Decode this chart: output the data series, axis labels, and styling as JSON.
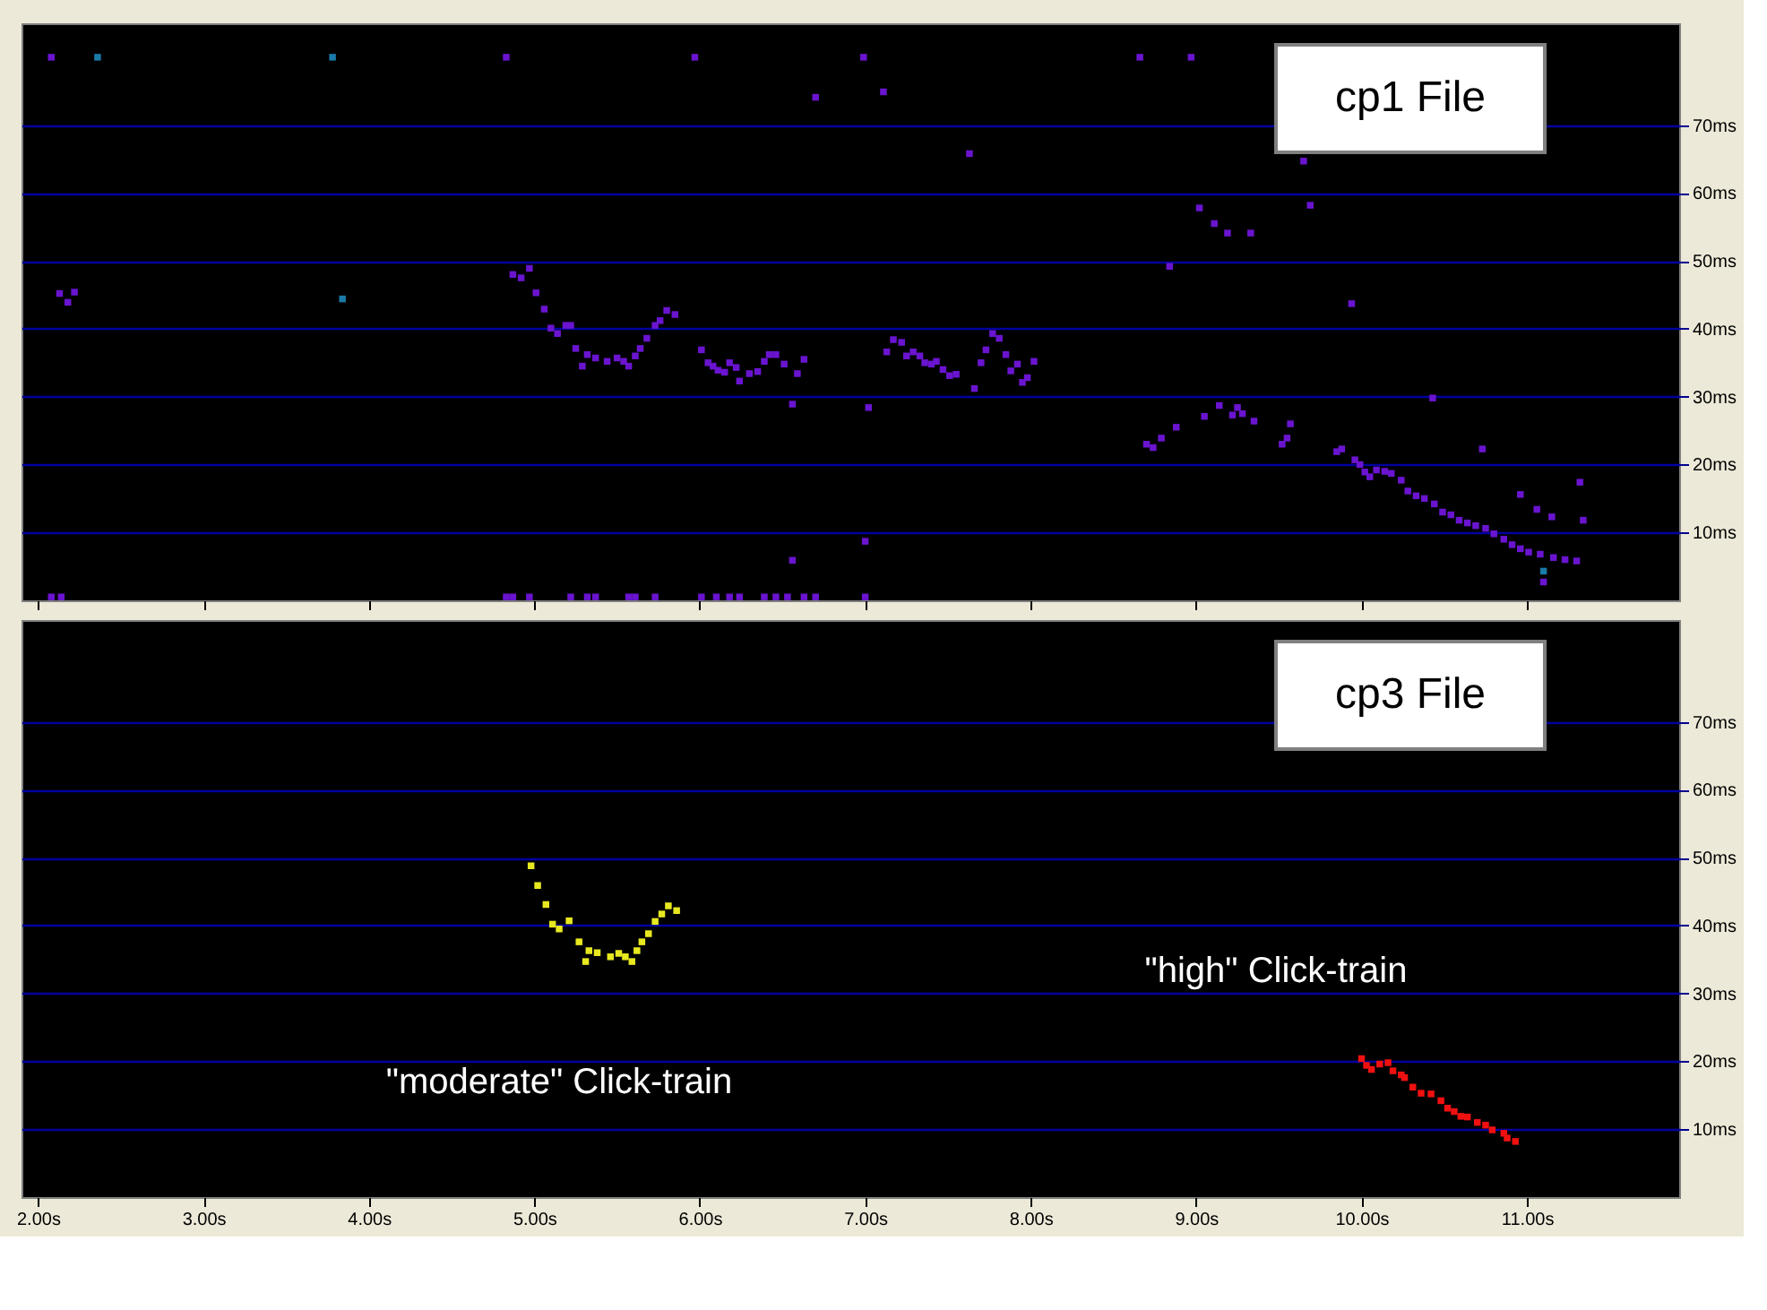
{
  "chart_data": [
    {
      "type": "scatter",
      "title": "cp1 File",
      "xlim": [
        1.9,
        11.92
      ],
      "ylim": [
        0,
        85
      ],
      "xticks": [
        2,
        3,
        4,
        5,
        6,
        7,
        8,
        9,
        10,
        11
      ],
      "yticks": [
        {
          "value": 10,
          "label": "10ms"
        },
        {
          "value": 20,
          "label": "20ms"
        },
        {
          "value": 30,
          "label": "30ms"
        },
        {
          "value": 40,
          "label": "40ms"
        },
        {
          "value": 50,
          "label": "50ms"
        },
        {
          "value": 60,
          "label": "60ms"
        },
        {
          "value": 70,
          "label": "70ms"
        }
      ],
      "tick_labels": "y",
      "grid": "y",
      "marker": "square",
      "series": [
        {
          "color": "#6a14d0",
          "x": [
            2.08,
            4.83,
            5.97,
            6.99,
            8.66,
            8.97,
            6.7,
            2.13,
            2.18,
            2.22,
            4.87,
            4.92,
            4.97,
            5.01,
            5.06,
            5.1,
            5.14,
            5.19,
            5.22,
            5.25,
            5.29,
            5.32,
            5.37,
            5.44,
            5.5,
            5.54,
            5.57,
            5.61,
            5.64,
            5.68,
            5.73,
            5.76,
            5.8,
            5.85,
            6.01,
            6.05,
            6.08,
            6.11,
            6.15,
            6.18,
            6.22,
            6.24,
            6.3,
            6.35,
            6.39,
            6.42,
            6.46,
            6.51,
            6.56,
            6.56,
            6.59,
            6.63,
            7.0,
            7.02,
            7.11,
            7.63,
            9.02,
            9.11,
            9.19,
            9.33,
            9.65,
            9.69,
            8.84,
            9.94,
            10.43,
            10.73,
            10.96,
            11.32,
            11.34,
            11.15,
            11.06,
            7.13,
            7.17,
            7.22,
            7.25,
            7.29,
            7.33,
            7.36,
            7.4,
            7.43,
            7.47,
            7.51,
            7.55,
            7.66,
            7.7,
            7.73,
            7.77,
            7.81,
            7.85,
            7.88,
            7.92,
            7.95,
            7.98,
            8.02,
            8.7,
            8.74,
            8.79,
            8.88,
            9.05,
            9.14,
            9.22,
            9.25,
            9.28,
            9.35,
            9.52,
            9.55,
            9.57,
            9.85,
            9.88,
            9.96,
            9.99,
            10.02,
            10.05,
            10.09,
            10.14,
            10.18,
            10.24,
            10.28,
            10.33,
            10.38,
            10.44,
            10.49,
            10.54,
            10.59,
            10.64,
            10.69,
            10.75,
            10.8,
            10.86,
            10.91,
            10.96,
            11.01,
            11.08,
            11.16,
            11.23,
            11.3,
            11.1,
            2.08,
            2.14,
            4.83,
            4.87,
            4.97,
            5.22,
            5.32,
            5.37,
            5.57,
            5.61,
            5.73,
            6.01,
            6.1,
            6.18,
            6.24,
            6.39,
            6.46,
            6.53,
            6.63,
            6.7,
            7.0
          ],
          "values": [
            80,
            80,
            80,
            80,
            80,
            80,
            74.1,
            45.2,
            43.9,
            45.4,
            48.0,
            47.5,
            48.9,
            45.3,
            42.9,
            40.1,
            39.3,
            40.5,
            40.5,
            37.1,
            34.5,
            36.2,
            35.7,
            35.2,
            35.7,
            35.2,
            34.5,
            36.0,
            37.1,
            38.6,
            40.5,
            41.2,
            42.7,
            42.1,
            36.9,
            35.0,
            34.5,
            33.9,
            33.6,
            35.0,
            34.3,
            32.3,
            33.4,
            33.7,
            35.2,
            36.2,
            36.2,
            34.8,
            28.9,
            5.9,
            33.4,
            35.5,
            8.7,
            28.4,
            74.9,
            65.8,
            57.8,
            55.5,
            54.1,
            54.1,
            64.7,
            58.2,
            49.2,
            43.7,
            29.8,
            22.3,
            15.6,
            17.4,
            11.8,
            12.3,
            13.4,
            36.6,
            38.4,
            38.0,
            36.0,
            36.6,
            36.0,
            35.0,
            34.8,
            35.2,
            34.0,
            33.1,
            33.3,
            31.2,
            35.0,
            36.9,
            39.3,
            38.6,
            36.2,
            33.8,
            34.8,
            32.1,
            32.8,
            35.2,
            23.0,
            22.5,
            23.9,
            25.5,
            27.1,
            28.7,
            27.3,
            28.4,
            27.5,
            26.4,
            23.0,
            23.9,
            26.0,
            21.9,
            22.3,
            20.7,
            20.0,
            18.9,
            18.2,
            19.2,
            19.0,
            18.7,
            17.7,
            16.1,
            15.4,
            15.0,
            14.2,
            13.0,
            12.6,
            11.8,
            11.4,
            11.0,
            10.6,
            9.8,
            9.0,
            8.2,
            7.6,
            7.1,
            6.8,
            6.3,
            6.0,
            5.8,
            2.7,
            0.5,
            0.5,
            0.5,
            0.5,
            0.5,
            0.5,
            0.5,
            0.5,
            0.5,
            0.5,
            0.5,
            0.5,
            0.5,
            0.5,
            0.5,
            0.5,
            0.5,
            0.5,
            0.5,
            0.5,
            0.5
          ]
        },
        {
          "color": "#1a7aa8",
          "x": [
            2.36,
            3.78,
            3.84,
            11.1
          ],
          "values": [
            80,
            80,
            44.4,
            4.3
          ]
        }
      ]
    },
    {
      "type": "scatter",
      "title": "cp3 File",
      "xlim": [
        1.9,
        11.92
      ],
      "ylim": [
        0,
        85
      ],
      "xticks": [
        {
          "value": 2,
          "label": "2.00s"
        },
        {
          "value": 3,
          "label": "3.00s"
        },
        {
          "value": 4,
          "label": "4.00s"
        },
        {
          "value": 5,
          "label": "5.00s"
        },
        {
          "value": 6,
          "label": "6.00s"
        },
        {
          "value": 7,
          "label": "7.00s"
        },
        {
          "value": 8,
          "label": "8.00s"
        },
        {
          "value": 9,
          "label": "9.00s"
        },
        {
          "value": 10,
          "label": "10.00s"
        },
        {
          "value": 11,
          "label": "11.00s"
        }
      ],
      "yticks": [
        {
          "value": 10,
          "label": "10ms"
        },
        {
          "value": 20,
          "label": "20ms"
        },
        {
          "value": 30,
          "label": "30ms"
        },
        {
          "value": 40,
          "label": "40ms"
        },
        {
          "value": 50,
          "label": "50ms"
        },
        {
          "value": 60,
          "label": "60ms"
        },
        {
          "value": 70,
          "label": "70ms"
        }
      ],
      "grid": "y",
      "marker": "square",
      "annotations": [
        "\"moderate\" Click-train",
        "\"high\" Click-train"
      ],
      "series": [
        {
          "color": "#e8e820",
          "x": [
            4.98,
            5.02,
            5.07,
            5.11,
            5.15,
            5.21,
            5.27,
            5.33,
            5.31,
            5.38,
            5.46,
            5.51,
            5.55,
            5.59,
            5.62,
            5.65,
            5.69,
            5.73,
            5.77,
            5.81,
            5.86
          ],
          "values": [
            48.8,
            45.9,
            43.1,
            40.2,
            39.5,
            40.7,
            37.6,
            36.3,
            34.7,
            36.0,
            35.4,
            35.9,
            35.4,
            34.7,
            36.3,
            37.6,
            38.8,
            40.6,
            41.7,
            42.9,
            42.2
          ]
        },
        {
          "color": "#f01010",
          "x": [
            10.0,
            10.03,
            10.06,
            10.11,
            10.16,
            10.19,
            10.24,
            10.26,
            10.31,
            10.36,
            10.42,
            10.48,
            10.52,
            10.56,
            10.6,
            10.64,
            10.7,
            10.75,
            10.79,
            10.86,
            10.88,
            10.93
          ],
          "values": [
            20.4,
            19.4,
            18.8,
            19.6,
            19.8,
            18.6,
            18.0,
            17.6,
            16.2,
            15.3,
            15.2,
            14.2,
            13.1,
            12.6,
            11.9,
            11.8,
            11.0,
            10.6,
            9.9,
            9.4,
            8.7,
            8.2
          ]
        }
      ]
    }
  ]
}
